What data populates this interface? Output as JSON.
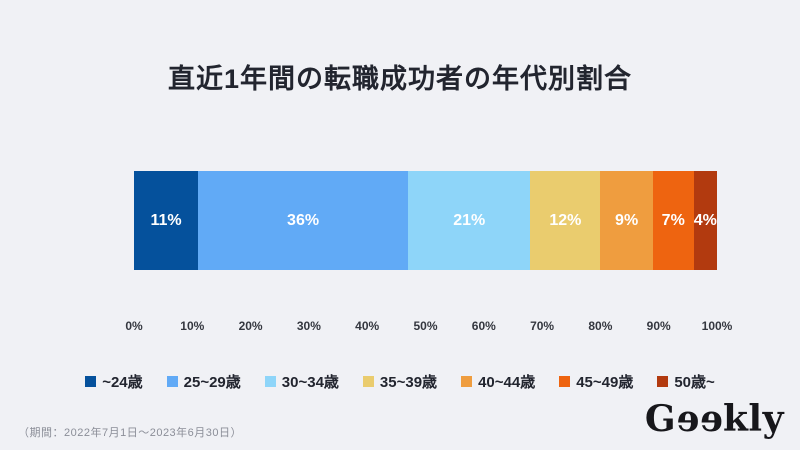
{
  "page": {
    "background_color": "#f0f1f5"
  },
  "chart_data": {
    "type": "bar",
    "orientation": "horizontal-stacked",
    "title": "直近1年間の転職成功者の年代別割合",
    "categories": [
      "~24歳",
      "25~29歳",
      "30~34歳",
      "35~39歳",
      "40~44歳",
      "45~49歳",
      "50歳~"
    ],
    "values": [
      11,
      36,
      21,
      12,
      9,
      7,
      4
    ],
    "value_labels": [
      "11%",
      "36%",
      "21%",
      "12%",
      "9%",
      "7%",
      "4%"
    ],
    "colors": [
      "#05519c",
      "#61aaf6",
      "#8ed5f9",
      "#eacc6e",
      "#ef9d3f",
      "#ee6410",
      "#b23a0f"
    ],
    "x_ticks": [
      "0%",
      "10%",
      "20%",
      "30%",
      "40%",
      "50%",
      "60%",
      "70%",
      "80%",
      "90%",
      "100%"
    ],
    "xlim": [
      0,
      100
    ],
    "unit": "%",
    "grid": false,
    "legend_position": "bottom",
    "annotation": "（期間：2022年7月1日～2023年6月30日）"
  },
  "footer": {
    "logo": {
      "text": "Geekly",
      "part_g": "G",
      "part_ee": "ee",
      "part_rest": "kly"
    }
  }
}
